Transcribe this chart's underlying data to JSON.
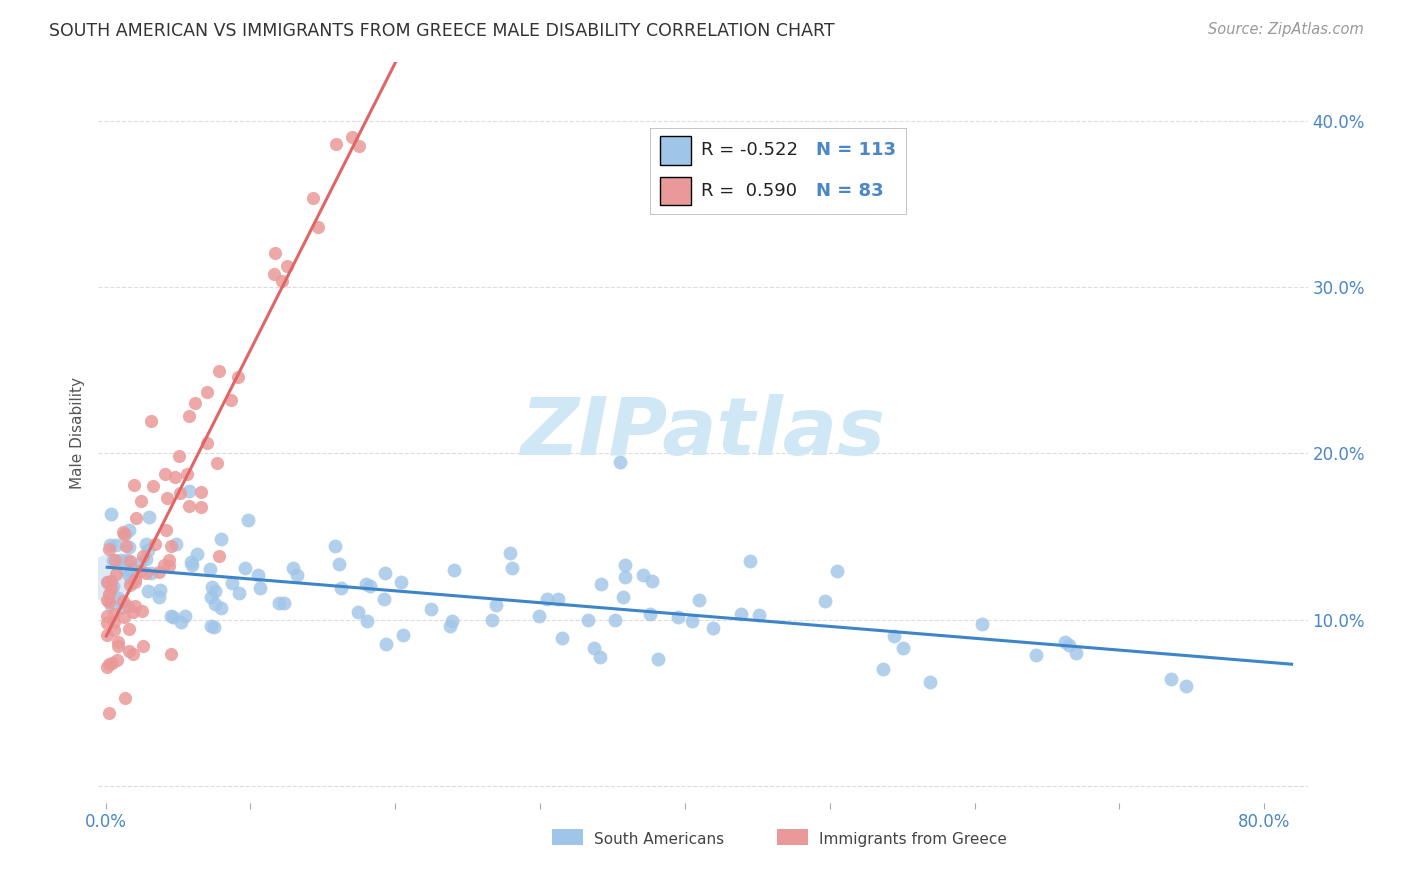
{
  "title": "SOUTH AMERICAN VS IMMIGRANTS FROM GREECE MALE DISABILITY CORRELATION CHART",
  "source": "Source: ZipAtlas.com",
  "ylabel": "Male Disability",
  "y_ticks": [
    0.0,
    0.1,
    0.2,
    0.3,
    0.4
  ],
  "y_tick_labels": [
    "",
    "10.0%",
    "20.0%",
    "30.0%",
    "40.0%"
  ],
  "x_ticks": [
    0.0,
    0.1,
    0.2,
    0.3,
    0.4,
    0.5,
    0.6,
    0.7,
    0.8
  ],
  "x_tick_labels": [
    "0.0%",
    "",
    "",
    "",
    "",
    "",
    "",
    "",
    "80.0%"
  ],
  "xlim": [
    -0.005,
    0.83
  ],
  "ylim": [
    -0.01,
    0.435
  ],
  "blue_color": "#9fc5e8",
  "pink_color": "#ea9999",
  "blue_line_color": "#3d85c8",
  "pink_line_color": "#e06666",
  "gray_dash_color": "#bbbbbb",
  "watermark_color": "#d0e8f5",
  "legend_blue_R": "-0.522",
  "legend_blue_N": "113",
  "legend_pink_R": "0.590",
  "legend_pink_N": "83",
  "legend_label_blue": "South Americans",
  "legend_label_pink": "Immigrants from Greece",
  "blue_seed": 42,
  "pink_seed": 99,
  "title_color": "#333333",
  "axis_label_color": "#4a86c8",
  "tick_color": "#4a86c8",
  "grid_color": "#dddddd",
  "source_color": "#999999"
}
